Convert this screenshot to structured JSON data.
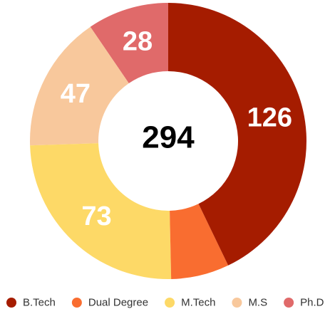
{
  "chart_data": {
    "type": "donut",
    "categories": [
      "B.Tech",
      "Dual Degree",
      "M.Tech",
      "M.S",
      "Ph.D"
    ],
    "values": [
      126,
      20,
      73,
      47,
      28
    ],
    "colors": [
      "#a51c00",
      "#f96d30",
      "#fdd967",
      "#f8c89c",
      "#e06a6a"
    ],
    "total": 294,
    "legend": "bottom"
  }
}
